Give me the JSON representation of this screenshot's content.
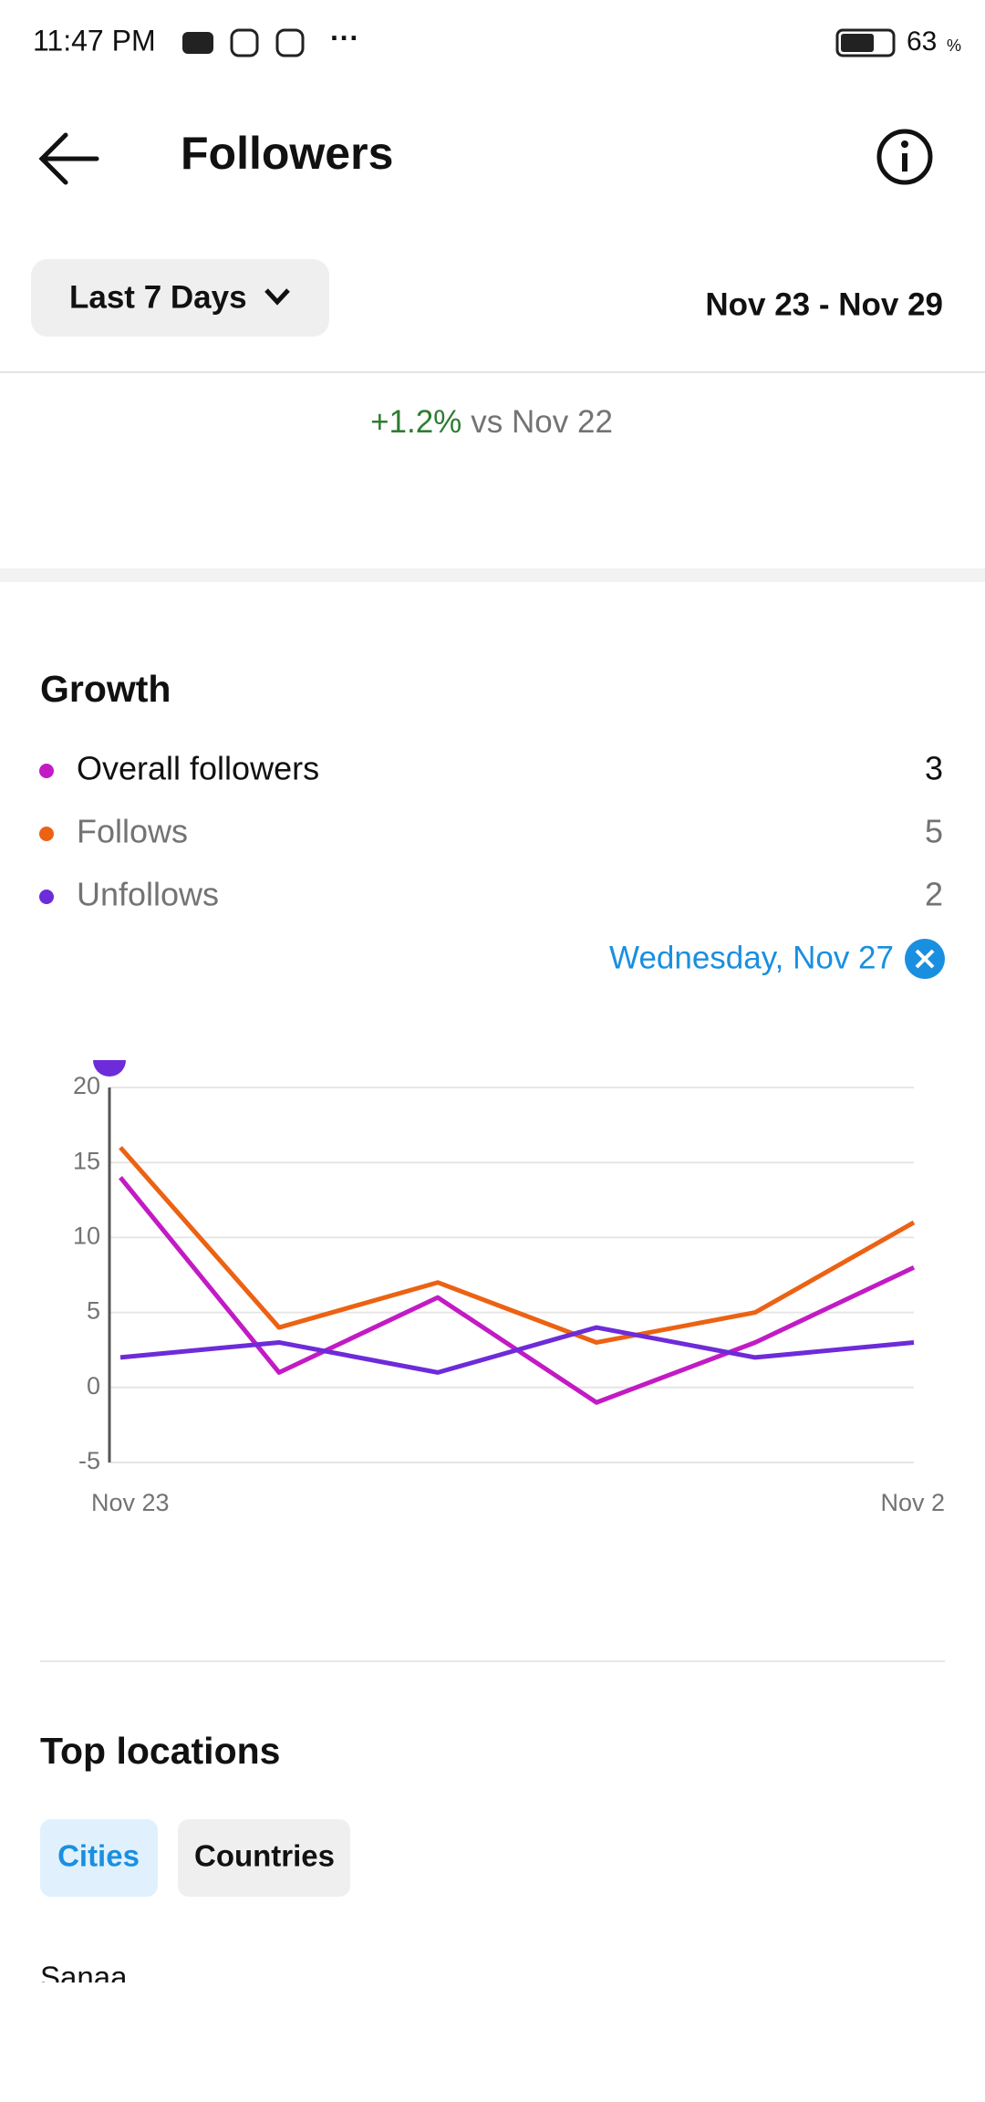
{
  "status_bar": {
    "time": "11:47 PM",
    "battery": "63",
    "battery_unit": "%"
  },
  "header": {
    "title": "Followers"
  },
  "filter": {
    "range": "Last 7 Days",
    "dates": "Nov 23 - Nov 29"
  },
  "change": {
    "delta": "+1.2%",
    "comparison": "vs Nov 22"
  },
  "growth": {
    "title": "Growth",
    "totals": [
      3,
      5,
      2
    ],
    "selected_date": "Wednesday, Nov 27"
  },
  "chart_data": {
    "type": "line",
    "categories": [
      "Nov 23",
      null,
      null,
      null,
      null,
      "Nov 2"
    ],
    "series": [
      {
        "name": "Overall followers",
        "color": "#c21bc4",
        "values": [
          14,
          1,
          6,
          -1,
          3,
          8
        ]
      },
      {
        "name": "Follows",
        "color": "#ec6213",
        "values": [
          16,
          4,
          7,
          3,
          5,
          11
        ]
      },
      {
        "name": "Unfollows",
        "color": "#6d2bd9",
        "values": [
          2,
          3,
          1,
          4,
          2,
          3
        ]
      }
    ],
    "ylim": [
      -5,
      20
    ],
    "yticks": [
      -5,
      0,
      5,
      10,
      15,
      20
    ],
    "grid": true
  },
  "locations": {
    "title": "Top locations",
    "tabs": [
      "Cities",
      "Countries"
    ],
    "first_item": "Sanaa"
  }
}
